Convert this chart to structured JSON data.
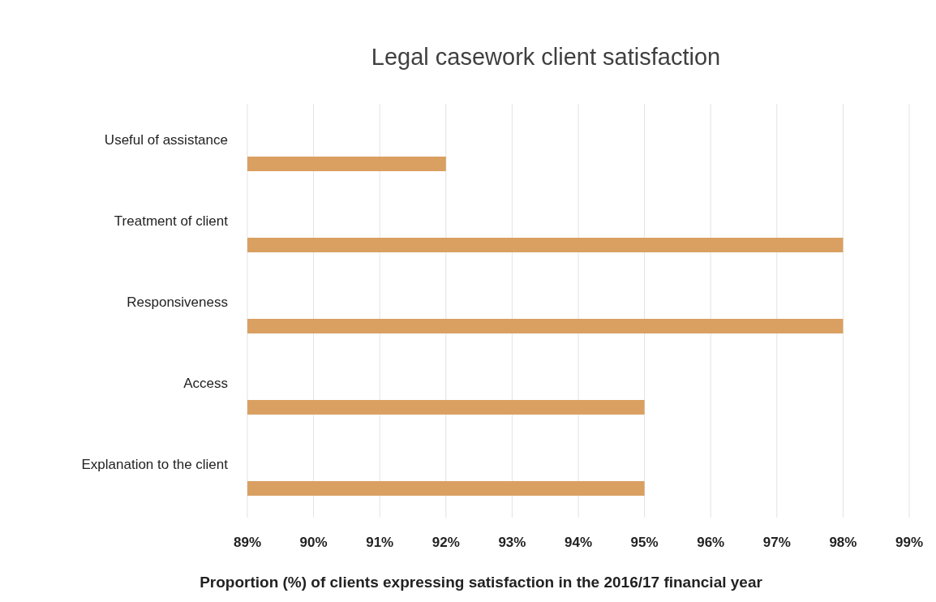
{
  "chart_data": {
    "type": "bar",
    "orientation": "horizontal",
    "title": "Legal casework client satisfaction",
    "xlabel": "Proportion (%) of clients expressing satisfaction in the 2016/17 financial year",
    "categories": [
      "Useful of assistance",
      "Treatment of client",
      "Responsiveness",
      "Access",
      "Explanation to the client"
    ],
    "values": [
      92,
      98,
      98,
      95,
      95
    ],
    "color": "#d9a062",
    "xlim": [
      89,
      99
    ],
    "xticks": [
      {
        "value": 89,
        "label": "89%"
      },
      {
        "value": 90,
        "label": "90%"
      },
      {
        "value": 91,
        "label": "91%"
      },
      {
        "value": 92,
        "label": "92%"
      },
      {
        "value": 93,
        "label": "93%"
      },
      {
        "value": 94,
        "label": "94%"
      },
      {
        "value": 95,
        "label": "95%"
      },
      {
        "value": 96,
        "label": "96%"
      },
      {
        "value": 97,
        "label": "97%"
      },
      {
        "value": 98,
        "label": "98%"
      },
      {
        "value": 99,
        "label": "99%"
      }
    ],
    "grid": "x"
  }
}
